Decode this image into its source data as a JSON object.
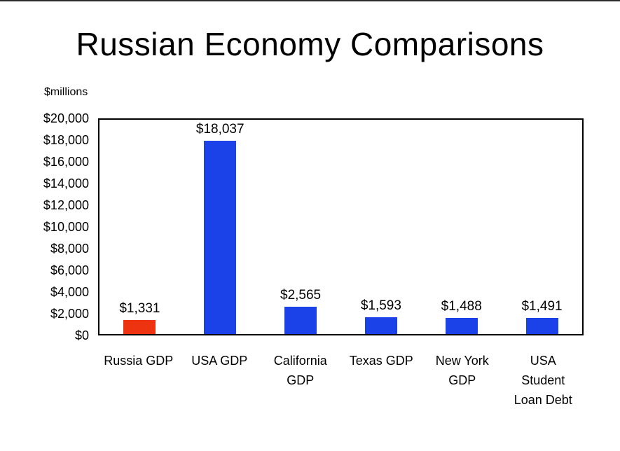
{
  "chart_data": {
    "type": "bar",
    "title": "Russian Economy Comparisons",
    "unit_label": "$millions",
    "categories": [
      "Russia GDP",
      "USA GDP",
      "California GDP",
      "Texas GDP",
      "New York GDP",
      "USA Student Loan Debt"
    ],
    "category_label_lines": [
      [
        "Russia GDP"
      ],
      [
        "USA GDP"
      ],
      [
        "California",
        "GDP"
      ],
      [
        "Texas GDP"
      ],
      [
        "New York",
        "GDP"
      ],
      [
        "USA",
        "Student",
        "Loan Debt"
      ]
    ],
    "values": [
      1331,
      18037,
      2565,
      1593,
      1488,
      1491
    ],
    "value_labels": [
      "$1,331",
      "$18,037",
      "$2,565",
      "$1,593",
      "$1,488",
      "$1,491"
    ],
    "bar_colors": [
      "#ee3311",
      "#1b41e8",
      "#1b41e8",
      "#1b41e8",
      "#1b41e8",
      "#1b41e8"
    ],
    "ylim": [
      0,
      20000
    ],
    "ytick_step": 2000,
    "ytick_labels": [
      "$20,000",
      "$18,000",
      "$16,000",
      "$14,000",
      "$12,000",
      "$10,000",
      "$8,000",
      "$6,000",
      "$4,000",
      "$2,000",
      "$0"
    ],
    "grid": false,
    "legend": "none",
    "colors": {
      "bar_blue": "#1b41e8",
      "bar_red": "#ee3311",
      "axis": "#000000"
    }
  }
}
